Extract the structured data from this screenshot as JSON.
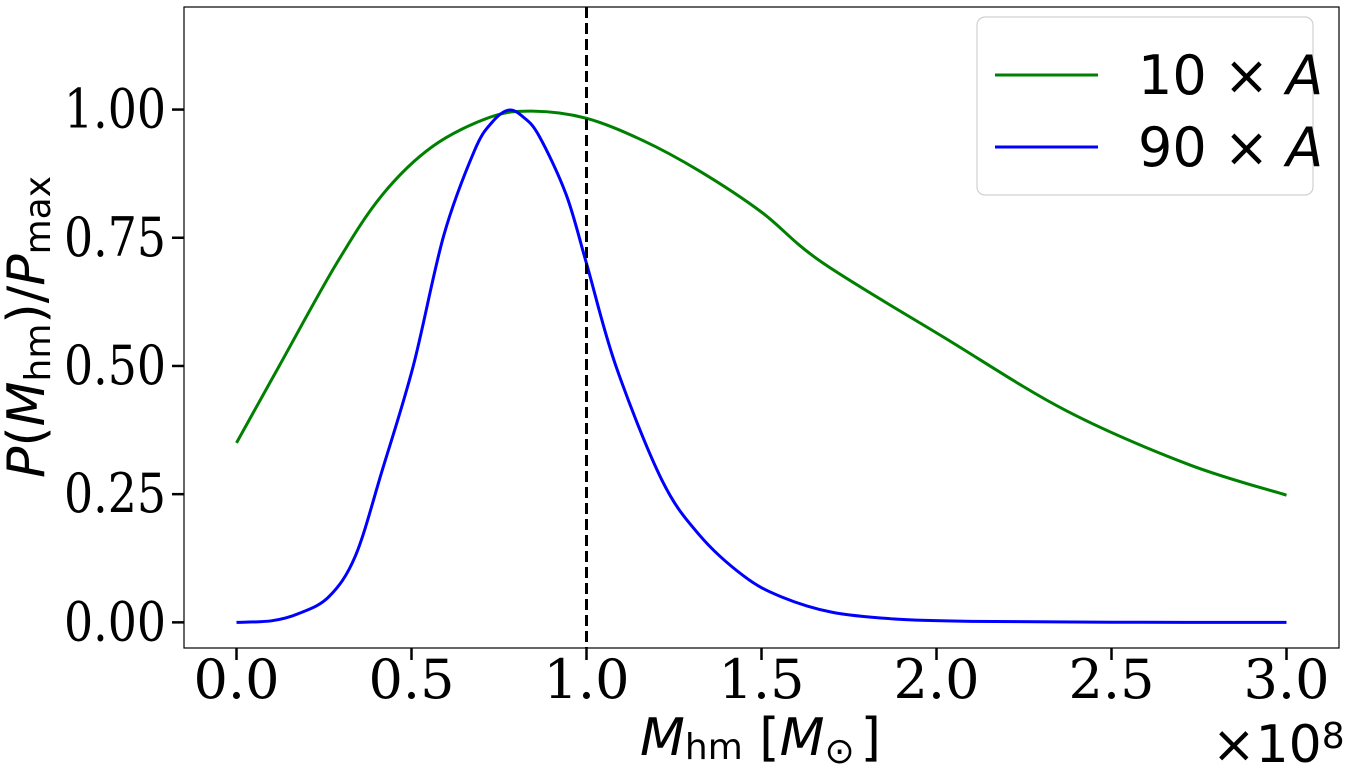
{
  "chart_data": {
    "type": "line",
    "title": "",
    "xlabel": {
      "main": "M",
      "sub": "hm",
      "unit_open": " [",
      "unit_main": "M",
      "unit_sub": "⊙",
      "unit_close": "]"
    },
    "ylabel": {
      "p1": "P(",
      "m": "M",
      "sub1": "hm",
      "p2": ")/",
      "p3": "P",
      "sub2": "max"
    },
    "x_offset_text": {
      "base": "×10",
      "exp": "8"
    },
    "xlim": [
      -0.15,
      3.15
    ],
    "ylim": [
      -0.05,
      1.2
    ],
    "xticks": [
      0.0,
      0.5,
      1.0,
      1.5,
      2.0,
      2.5,
      3.0
    ],
    "xtick_labels": [
      "0.0",
      "0.5",
      "1.0",
      "1.5",
      "2.0",
      "2.5",
      "3.0"
    ],
    "yticks": [
      0.0,
      0.25,
      0.5,
      0.75,
      1.0
    ],
    "ytick_labels": [
      "0.00",
      "0.25",
      "0.50",
      "0.75",
      "1.00"
    ],
    "grid": false,
    "legend_position": "top-right",
    "vline": {
      "x": 1.0,
      "color": "#000000",
      "style": "dashed"
    },
    "series": [
      {
        "name": "10 × A",
        "legend_num": "10 × ",
        "legend_var": "A",
        "color": "#008000",
        "x": [
          0,
          0.122,
          0.286,
          0.417,
          0.56,
          0.724,
          0.845,
          1.0,
          1.16,
          1.323,
          1.5,
          1.673,
          2.023,
          2.37,
          2.72,
          3.0
        ],
        "y": [
          0.35,
          0.5,
          0.7,
          0.834,
          0.928,
          0.985,
          0.997,
          0.983,
          0.94,
          0.88,
          0.8,
          0.702,
          0.555,
          0.413,
          0.308,
          0.248
        ]
      },
      {
        "name": "90 × A",
        "legend_num": "90 × ",
        "legend_var": "A",
        "color": "#0000ff",
        "x": [
          0,
          0.1,
          0.177,
          0.264,
          0.34,
          0.417,
          0.505,
          0.592,
          0.68,
          0.73,
          0.778,
          0.82,
          0.865,
          0.942,
          1.0,
          1.084,
          1.215,
          1.323,
          1.45,
          1.556,
          1.7,
          1.88,
          2.1,
          2.5,
          3.0
        ],
        "y": [
          0,
          0.003,
          0.017,
          0.05,
          0.13,
          0.298,
          0.5,
          0.754,
          0.92,
          0.975,
          0.999,
          0.985,
          0.948,
          0.834,
          0.7,
          0.5,
          0.278,
          0.17,
          0.09,
          0.05,
          0.02,
          0.0066,
          0.002,
          0.0003,
          0
        ]
      }
    ]
  }
}
